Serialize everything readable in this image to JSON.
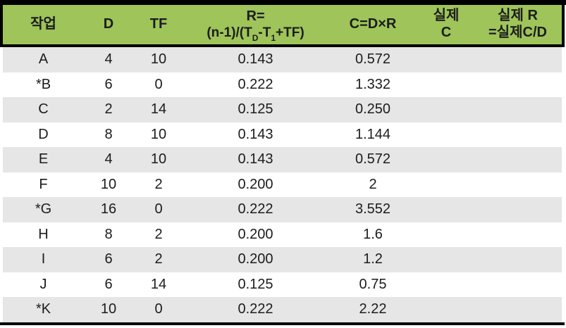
{
  "colors": {
    "header_bg": "#9ec45a",
    "row_alt_bg": "#e6e6e6",
    "row_bg": "#ffffff",
    "border": "#000000",
    "text": "#1c1c1c"
  },
  "table": {
    "header": {
      "task": "작업",
      "d": "D",
      "tf": "TF",
      "r_line1": "R=",
      "r_formula": {
        "p1": "(n-1)/(T",
        "sub1": "D",
        "p2": "-T",
        "sub2": "1",
        "p3": "+TF)"
      },
      "c": "C=D×R",
      "actual_c_line1": "실제",
      "actual_c_line2": "C",
      "actual_r_line1": "실제 R",
      "actual_r_line2": "=실제C/D"
    }
  },
  "chart_data": {
    "type": "table",
    "title": "",
    "columns": [
      "작업",
      "D",
      "TF",
      "R=(n-1)/(T_D-T_1+TF)",
      "C=D×R",
      "실제 C",
      "실제 R =실제C/D"
    ],
    "rows": [
      [
        "A",
        "4",
        "10",
        "0.143",
        "0.572",
        "",
        ""
      ],
      [
        "*B",
        "6",
        "0",
        "0.222",
        "1.332",
        "",
        ""
      ],
      [
        "C",
        "2",
        "14",
        "0.125",
        "0.250",
        "",
        ""
      ],
      [
        "D",
        "8",
        "10",
        "0.143",
        "1.144",
        "",
        ""
      ],
      [
        "E",
        "4",
        "10",
        "0.143",
        "0.572",
        "",
        ""
      ],
      [
        "F",
        "10",
        "2",
        "0.200",
        "2",
        "",
        ""
      ],
      [
        "*G",
        "16",
        "0",
        "0.222",
        "3.552",
        "",
        ""
      ],
      [
        "H",
        "8",
        "2",
        "0.200",
        "1.6",
        "",
        ""
      ],
      [
        "I",
        "6",
        "2",
        "0.200",
        "1.2",
        "",
        ""
      ],
      [
        "J",
        "6",
        "14",
        "0.125",
        "0.75",
        "",
        ""
      ],
      [
        "*K",
        "10",
        "0",
        "0.222",
        "2.22",
        "",
        ""
      ]
    ]
  }
}
